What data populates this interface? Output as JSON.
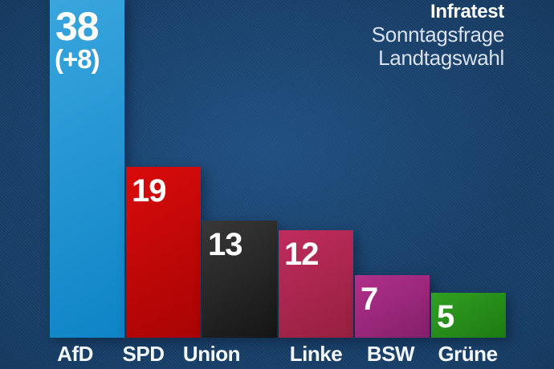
{
  "header": {
    "source": "Infratest",
    "subtitle_line1": "Sonntagsfrage",
    "subtitle_line2": "Landtagswahl"
  },
  "chart_data": {
    "type": "bar",
    "title": "Sonntagsfrage Landtagswahl",
    "source": "Infratest",
    "categories": [
      "AfD",
      "SPD",
      "Union",
      "Linke",
      "BSW",
      "Grüne"
    ],
    "values": [
      38,
      19,
      13,
      12,
      7,
      5
    ],
    "value_labels": [
      "38",
      "19",
      "13",
      "12",
      "7",
      "5"
    ],
    "delta_labels": [
      "(+8)",
      "",
      "",
      "",
      "",
      ""
    ],
    "unit": "percent",
    "ylim": [
      0,
      40
    ],
    "grid": false,
    "legend": "none",
    "orientation": "vertical",
    "note": "AfD bar is cut off at the top edge of the frame",
    "bar_colors": [
      {
        "party": "AfD",
        "from": "#3aa6de",
        "to": "#0e84c6"
      },
      {
        "party": "SPD",
        "from": "#d90b0b",
        "to": "#a80404"
      },
      {
        "party": "Union",
        "from": "#383838",
        "to": "#151515"
      },
      {
        "party": "Linke",
        "from": "#c02c5e",
        "to": "#95203f"
      },
      {
        "party": "BSW",
        "from": "#b03089",
        "to": "#84206b"
      },
      {
        "party": "Grüne",
        "from": "#31a021",
        "to": "#1d7a12"
      }
    ],
    "background_color": "#163a5e",
    "text_color": "#ffffff"
  }
}
